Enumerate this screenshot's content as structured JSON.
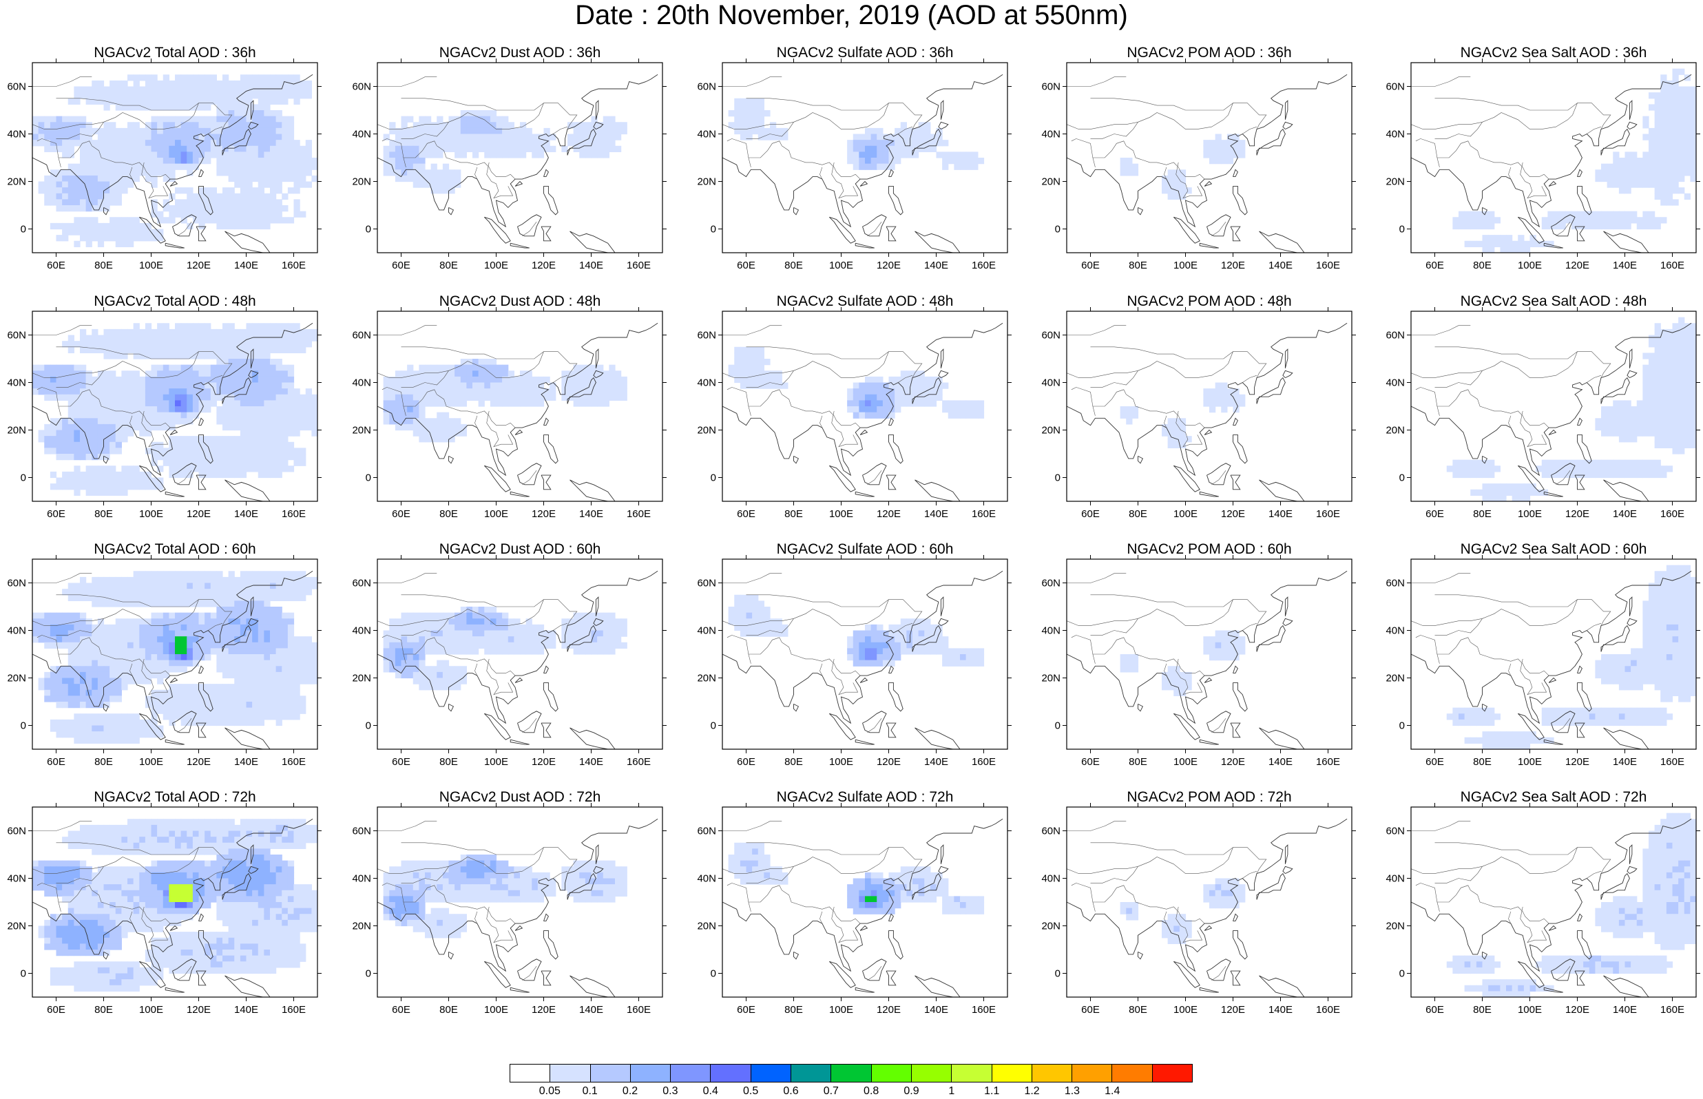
{
  "title": "Date : 20th November, 2019 (AOD at 550nm)",
  "axes": {
    "lat_ticks": [
      "60N",
      "40N",
      "20N",
      "0"
    ],
    "lon_ticks": [
      "60E",
      "80E",
      "100E",
      "120E",
      "140E",
      "160E"
    ],
    "lon_range": [
      50,
      170
    ],
    "lat_range": [
      -10,
      70
    ]
  },
  "panels": [
    [
      "NGACv2 Total AOD : 36h",
      "NGACv2 Dust AOD : 36h",
      "NGACv2 Sulfate AOD : 36h",
      "NGACv2 POM AOD : 36h",
      "NGACv2 Sea Salt AOD : 36h"
    ],
    [
      "NGACv2 Total AOD : 48h",
      "NGACv2 Dust AOD : 48h",
      "NGACv2 Sulfate AOD : 48h",
      "NGACv2 POM AOD : 48h",
      "NGACv2 Sea Salt AOD : 48h"
    ],
    [
      "NGACv2 Total AOD : 60h",
      "NGACv2 Dust AOD : 60h",
      "NGACv2 Sulfate AOD : 60h",
      "NGACv2 POM AOD : 60h",
      "NGACv2 Sea Salt AOD : 60h"
    ],
    [
      "NGACv2 Total AOD : 72h",
      "NGACv2 Dust AOD : 72h",
      "NGACv2 Sulfate AOD : 72h",
      "NGACv2 POM AOD : 72h",
      "NGACv2 Sea Salt  AOD : 72h"
    ]
  ],
  "colorbar": {
    "colors": [
      "#ffffff",
      "#d6e2ff",
      "#b5c9ff",
      "#8eb2ff",
      "#7f96ff",
      "#6370ff",
      "#0063ff",
      "#009696",
      "#00c633",
      "#63ff00",
      "#96ff00",
      "#c6ff33",
      "#ffff00",
      "#ffc600",
      "#ffa000",
      "#ff7c00",
      "#ff1900"
    ],
    "labels": [
      "0.05",
      "0.1",
      "0.2",
      "0.3",
      "0.4",
      "0.5",
      "0.6",
      "0.7",
      "0.8",
      "0.9",
      "1",
      "1.1",
      "1.2",
      "1.3",
      "1.4"
    ]
  }
}
